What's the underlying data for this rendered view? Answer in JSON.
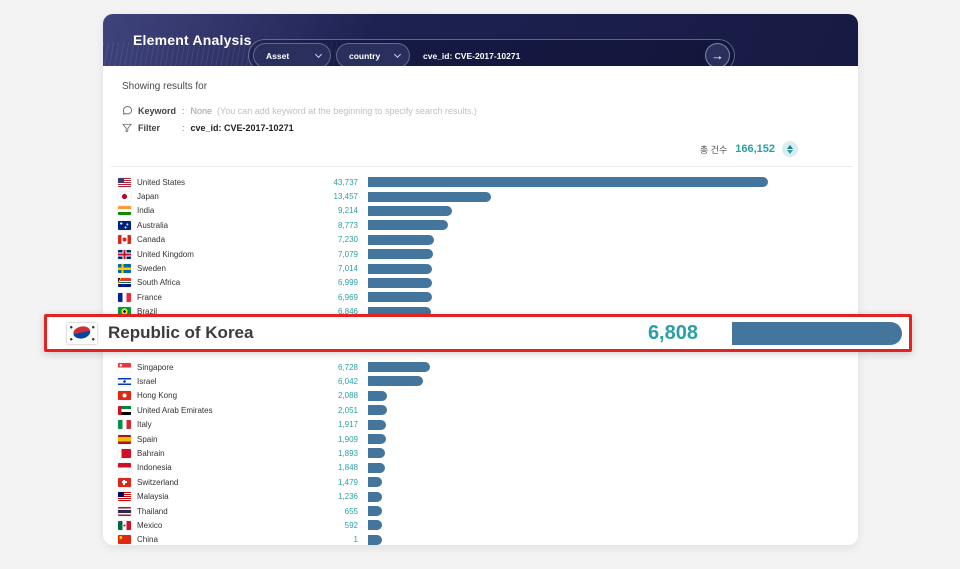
{
  "header": {
    "title": "Element Analysis",
    "dropdowns": [
      {
        "label": "Asset"
      },
      {
        "label": "country"
      }
    ],
    "query": "cve_id: CVE-2017-10271",
    "submit_arrow": "→"
  },
  "results_info": {
    "heading": "Showing results for",
    "keyword_label": "Keyword",
    "keyword_separator": ":",
    "keyword_value": "None",
    "keyword_note": "(You can add keyword at the beginning to specify search results.)",
    "filter_label": "Filter",
    "filter_separator": ":",
    "filter_value": "cve_id: CVE-2017-10271"
  },
  "total": {
    "label": "총 건수",
    "value": "166,152"
  },
  "highlight_callout": {
    "category": "Republic of Korea",
    "value_label": "6,808"
  },
  "colors": {
    "bar": "#44759c",
    "value_text": "#2a9fa6",
    "highlight_border": "#e32222",
    "header_bg": "#1d2150",
    "card_bg": "#ffffff",
    "page_bg": "#f3f3f4"
  },
  "chart_data": {
    "type": "bar",
    "orientation": "horizontal",
    "title": "",
    "xlabel": "",
    "ylabel": "",
    "categories": [
      "United States",
      "Japan",
      "India",
      "Australia",
      "Canada",
      "United Kingdom",
      "Sweden",
      "South Africa",
      "France",
      "Brazil",
      "Republic of Korea",
      "Singapore",
      "Israel",
      "Hong Kong",
      "United Arab Emirates",
      "Italy",
      "Spain",
      "Bahrain",
      "Indonesia",
      "Switzerland",
      "Malaysia",
      "Thailand",
      "Mexico",
      "China"
    ],
    "values": [
      43737,
      13457,
      9214,
      8773,
      7230,
      7079,
      7014,
      6999,
      6969,
      6846,
      6808,
      6728,
      6042,
      2088,
      2051,
      1917,
      1909,
      1893,
      1848,
      1479,
      1236,
      655,
      592,
      1
    ],
    "value_labels": [
      "43,737",
      "13,457",
      "9,214",
      "8,773",
      "7,230",
      "7,079",
      "7,014",
      "6,999",
      "6,969",
      "6,846",
      "6,808",
      "6,728",
      "6,042",
      "2,088",
      "2,051",
      "1,917",
      "1,909",
      "1,893",
      "1,848",
      "1,479",
      "1,236",
      "655",
      "592",
      "1"
    ],
    "flags": [
      "us",
      "jp",
      "in",
      "au",
      "ca",
      "gb",
      "se",
      "za",
      "fr",
      "br",
      "kr",
      "sg",
      "il",
      "hk",
      "ae",
      "it",
      "es",
      "bh",
      "id",
      "ch",
      "my",
      "th",
      "mx",
      "cn"
    ],
    "highlighted_category": "Republic of Korea",
    "max_value": 43737,
    "total_label": "총 건수",
    "total_value": 166152,
    "grid": false,
    "legend": false
  }
}
